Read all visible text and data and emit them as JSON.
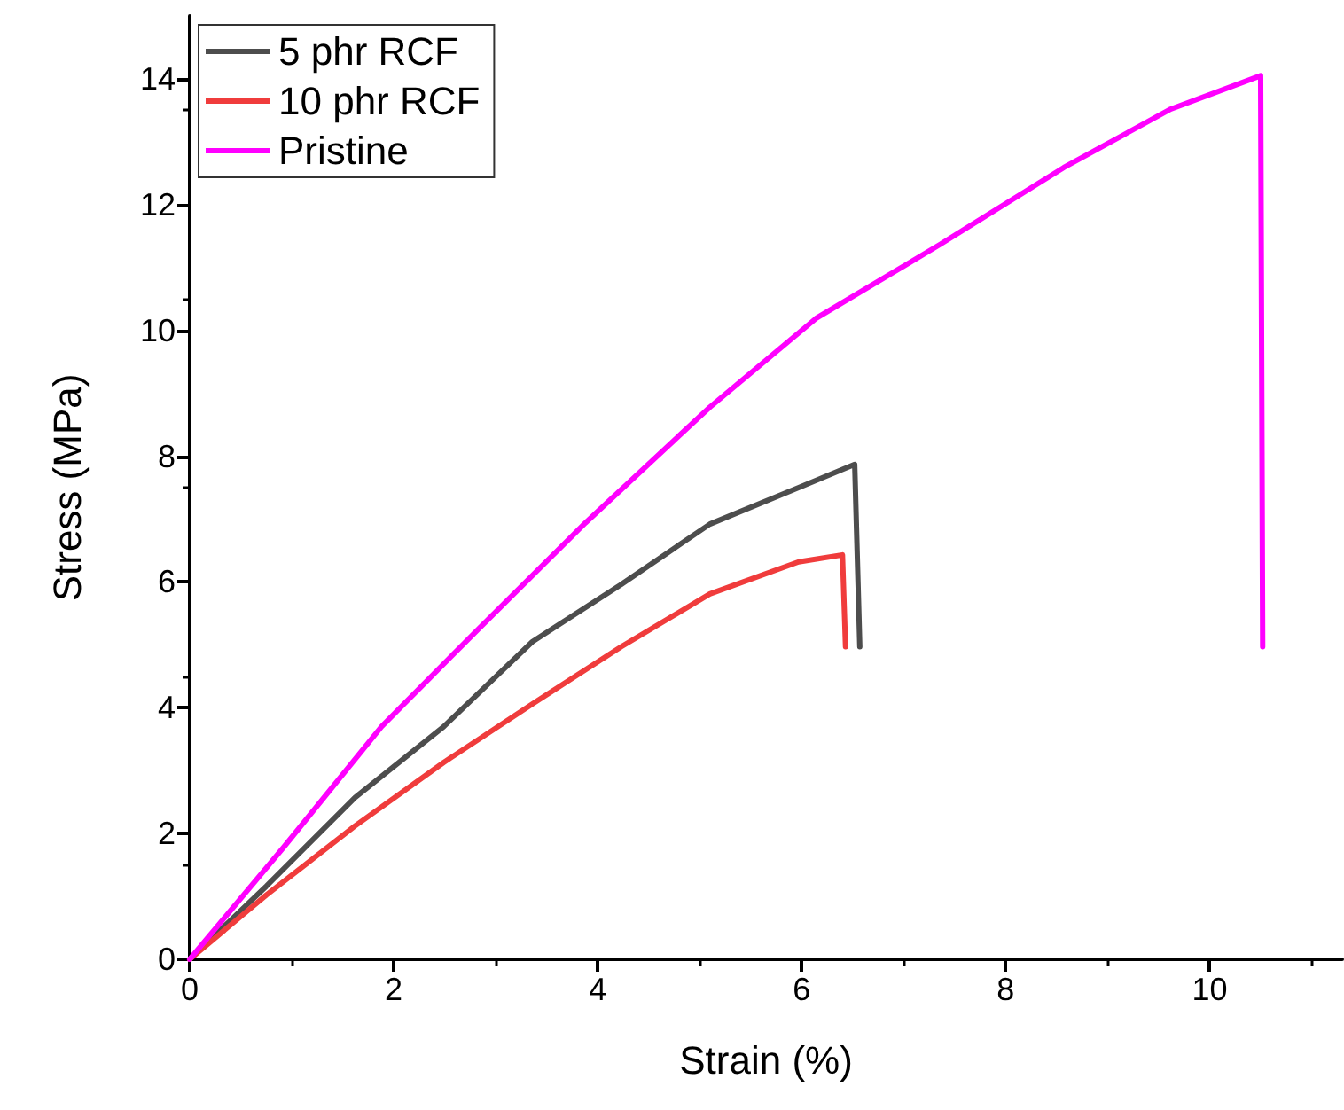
{
  "chart_data": {
    "type": "line",
    "xlabel": "Strain (%)",
    "ylabel": "Stress (MPa)",
    "xlim": [
      0,
      11.3
    ],
    "ylim": [
      0,
      15
    ],
    "xticks": [
      0,
      2,
      4,
      6,
      8,
      10
    ],
    "yticks": [
      0,
      2,
      4,
      6,
      8,
      10,
      12,
      14
    ],
    "legend": "top left",
    "grid": false,
    "marker": "none",
    "line_style": "solid",
    "series": [
      {
        "name": "5 phr RCF",
        "color": "#4d4d4d",
        "x": [
          0,
          0.75,
          1.62,
          2.49,
          3.36,
          4.23,
          5.1,
          5.97,
          6.52,
          6.57
        ],
        "values": [
          0,
          1.16,
          2.57,
          3.7,
          5.05,
          5.96,
          6.92,
          7.5,
          7.87,
          4.97
        ]
      },
      {
        "name": "10 phr RCF",
        "color": "#f03c3c",
        "x": [
          0,
          0.75,
          1.62,
          2.49,
          3.36,
          4.23,
          5.1,
          5.97,
          6.4,
          6.43
        ],
        "values": [
          0,
          1.02,
          2.12,
          3.13,
          4.06,
          4.97,
          5.81,
          6.32,
          6.43,
          4.97
        ]
      },
      {
        "name": "Pristine",
        "color": "#ff00ff",
        "x": [
          0,
          0.92,
          1.88,
          2.83,
          3.88,
          5.1,
          6.14,
          7.36,
          8.57,
          9.62,
          10.5,
          10.52
        ],
        "values": [
          0,
          1.78,
          3.7,
          5.25,
          6.94,
          8.78,
          10.19,
          11.37,
          12.59,
          13.52,
          14.05,
          4.97
        ]
      }
    ]
  }
}
